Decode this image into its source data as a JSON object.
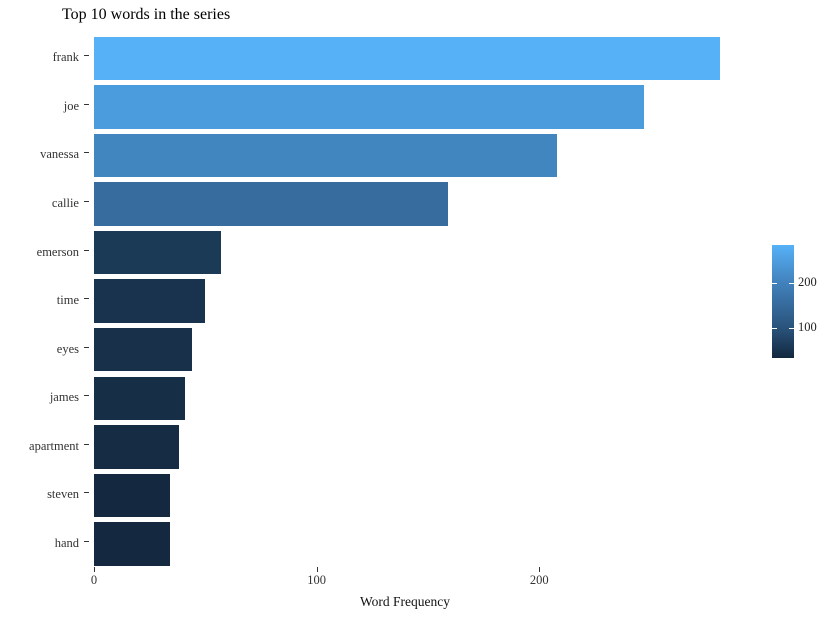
{
  "chart_data": {
    "type": "bar",
    "orientation": "horizontal",
    "title": "Top 10 words in the series",
    "xlabel": "Word Frequency",
    "ylabel": "",
    "categories": [
      "frank",
      "joe",
      "vanessa",
      "callie",
      "emerson",
      "time",
      "eyes",
      "james",
      "apartment",
      "steven",
      "hand"
    ],
    "values": [
      281,
      247,
      208,
      159,
      57,
      50,
      44,
      41,
      38,
      34,
      34
    ],
    "bar_colors": [
      "#56B1F7",
      "#4A9CDC",
      "#4286C0",
      "#376D9E",
      "#1B3A55",
      "#19334F",
      "#18304A",
      "#172E47",
      "#162C44",
      "#14293F",
      "#14293F"
    ],
    "x_ticks": [
      {
        "label": "0",
        "value": 0
      },
      {
        "label": "100",
        "value": 100
      },
      {
        "label": "200",
        "value": 200
      }
    ],
    "xlim": [
      0,
      300
    ],
    "grid": false,
    "legend_position": "right",
    "fill_scale": {
      "low_color": "#132B43",
      "high_color": "#56B1F7",
      "range": [
        34,
        285
      ],
      "ticks": [
        {
          "label": "200",
          "value": 200
        },
        {
          "label": "100",
          "value": 100
        }
      ]
    }
  }
}
